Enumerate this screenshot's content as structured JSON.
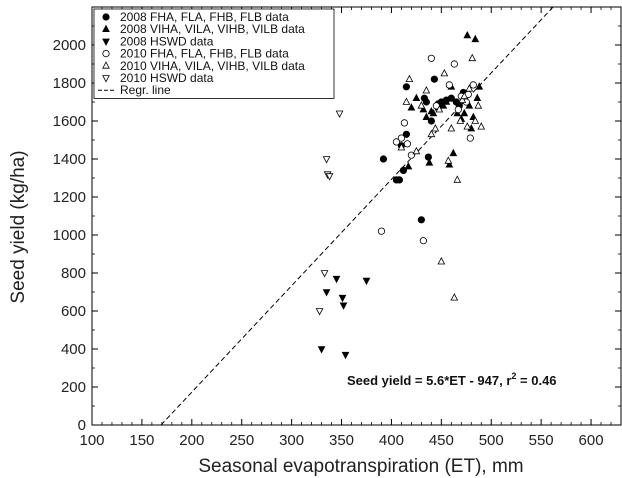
{
  "chart_data": {
    "type": "scatter",
    "xlabel": "Seasonal evapotranspiration (ET), mm",
    "ylabel": "Seed yield (kg/ha)",
    "xlim": [
      100,
      630
    ],
    "ylim": [
      0,
      2200
    ],
    "xticks": [
      100,
      150,
      200,
      250,
      300,
      350,
      400,
      450,
      500,
      550,
      600
    ],
    "yticks": [
      0,
      200,
      400,
      600,
      800,
      1000,
      1200,
      1400,
      1600,
      1800,
      2000
    ],
    "grid": false,
    "legend_position": "top-left",
    "annotation": {
      "main": "Seed yield = 5.6*ET - 947, r",
      "sup": "2",
      "tail": " = 0.46"
    },
    "regression": {
      "name": "Regr. line",
      "slope": 5.6,
      "intercept": -947
    },
    "series": [
      {
        "name": "2008 FHA, FLA, FHB, FLB data",
        "marker": "circle-filled",
        "points": [
          [
            392,
            1400
          ],
          [
            405,
            1290
          ],
          [
            408,
            1290
          ],
          [
            410,
            1470
          ],
          [
            412,
            1340
          ],
          [
            415,
            1530
          ],
          [
            415,
            1780
          ],
          [
            430,
            1080
          ],
          [
            433,
            1720
          ],
          [
            435,
            1700
          ],
          [
            437,
            1410
          ],
          [
            440,
            1600
          ],
          [
            443,
            1820
          ],
          [
            447,
            1690
          ],
          [
            450,
            1700
          ],
          [
            455,
            1710
          ],
          [
            460,
            1720
          ],
          [
            465,
            1700
          ],
          [
            468,
            1680
          ],
          [
            472,
            1750
          ]
        ]
      },
      {
        "name": "2008 VIHA, VILA, VIHB, VILB data",
        "marker": "triangle-up-filled",
        "points": [
          [
            417,
            1360
          ],
          [
            420,
            1670
          ],
          [
            425,
            1720
          ],
          [
            432,
            1660
          ],
          [
            435,
            1620
          ],
          [
            438,
            1380
          ],
          [
            440,
            1650
          ],
          [
            442,
            1640
          ],
          [
            447,
            1670
          ],
          [
            452,
            1680
          ],
          [
            455,
            1700
          ],
          [
            458,
            1370
          ],
          [
            460,
            1780
          ],
          [
            462,
            1430
          ],
          [
            466,
            1640
          ],
          [
            470,
            1610
          ],
          [
            473,
            1640
          ],
          [
            476,
            2050
          ],
          [
            478,
            1680
          ],
          [
            480,
            1560
          ],
          [
            482,
            1620
          ],
          [
            484,
            2030
          ],
          [
            486,
            1720
          ],
          [
            488,
            1780
          ]
        ]
      },
      {
        "name": "2008 HSWD data",
        "marker": "triangle-down-filled",
        "points": [
          [
            330,
            400
          ],
          [
            335,
            700
          ],
          [
            345,
            770
          ],
          [
            351,
            670
          ],
          [
            352,
            630
          ],
          [
            354,
            370
          ],
          [
            375,
            760
          ]
        ]
      },
      {
        "name": "2010 FHA, FLA, FHB, FLB data",
        "marker": "circle-open",
        "points": [
          [
            390,
            1020
          ],
          [
            405,
            1490
          ],
          [
            410,
            1510
          ],
          [
            413,
            1590
          ],
          [
            416,
            1480
          ],
          [
            420,
            1420
          ],
          [
            432,
            970
          ],
          [
            440,
            1930
          ],
          [
            445,
            1680
          ],
          [
            458,
            1790
          ],
          [
            463,
            1900
          ],
          [
            467,
            1660
          ],
          [
            470,
            1730
          ],
          [
            475,
            1700
          ],
          [
            477,
            1740
          ],
          [
            479,
            1510
          ],
          [
            482,
            1790
          ]
        ]
      },
      {
        "name": "2010 VIHA, VILA, VIHB, VILB data",
        "marker": "triangle-up-open",
        "points": [
          [
            410,
            1460
          ],
          [
            415,
            1700
          ],
          [
            418,
            1820
          ],
          [
            425,
            1440
          ],
          [
            430,
            1680
          ],
          [
            435,
            1760
          ],
          [
            440,
            1530
          ],
          [
            444,
            1560
          ],
          [
            448,
            1660
          ],
          [
            450,
            860
          ],
          [
            453,
            1850
          ],
          [
            457,
            1390
          ],
          [
            460,
            1560
          ],
          [
            463,
            670
          ],
          [
            466,
            1290
          ],
          [
            469,
            1600
          ],
          [
            471,
            1710
          ],
          [
            473,
            1730
          ],
          [
            476,
            1570
          ],
          [
            478,
            1770
          ],
          [
            481,
            1930
          ],
          [
            484,
            1600
          ],
          [
            487,
            1680
          ],
          [
            490,
            1570
          ]
        ]
      },
      {
        "name": "2010 HSWD data",
        "marker": "triangle-down-open",
        "points": [
          [
            328,
            600
          ],
          [
            333,
            800
          ],
          [
            335,
            1400
          ],
          [
            336,
            1320
          ],
          [
            338,
            1310
          ],
          [
            348,
            1640
          ]
        ]
      }
    ]
  }
}
